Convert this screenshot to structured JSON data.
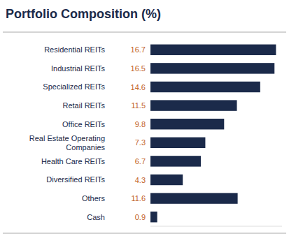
{
  "chart_data": {
    "type": "bar",
    "orientation": "horizontal",
    "title": "Portfolio Composition (%)",
    "categories": [
      "Residential REITs",
      "Industrial REITs",
      "Specialized REITs",
      "Retail REITs",
      "Office REITs",
      "Real Estate Operating\nCompanies",
      "Health Care REITs",
      "Diversified REITs",
      "Others",
      "Cash"
    ],
    "values": [
      16.7,
      16.5,
      14.6,
      11.5,
      9.8,
      7.3,
      6.7,
      4.3,
      11.6,
      0.9
    ],
    "color": "#1b2a4a",
    "xlim": [
      0,
      17.5
    ],
    "tick_labels": false,
    "data_labels": true,
    "grid": false
  }
}
